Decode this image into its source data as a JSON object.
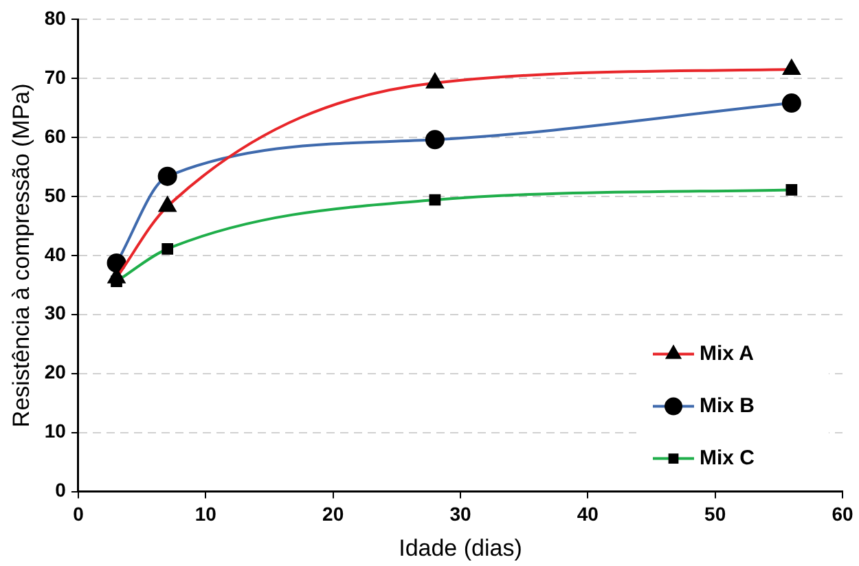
{
  "chart_data": {
    "type": "line",
    "xlabel": "Idade (dias)",
    "ylabel": "Resistência à compressão (MPa)",
    "x": [
      3,
      7,
      28,
      56
    ],
    "series": [
      {
        "name": "Mix A",
        "color": "#e8262a",
        "marker": "triangle",
        "values": [
          36.2,
          48.3,
          69.2,
          71.5
        ]
      },
      {
        "name": "Mix B",
        "color": "#3f6aad",
        "marker": "circle",
        "values": [
          38.7,
          53.4,
          59.6,
          65.8
        ]
      },
      {
        "name": "Mix C",
        "color": "#1fae4a",
        "marker": "square",
        "values": [
          35.6,
          41.1,
          49.4,
          51.1
        ]
      }
    ],
    "xlim": [
      0,
      60
    ],
    "xticks": [
      0,
      10,
      20,
      30,
      40,
      50,
      60
    ],
    "ylim": [
      0,
      80
    ],
    "yticks": [
      0,
      10,
      20,
      30,
      40,
      50,
      60,
      70,
      80
    ],
    "grid": "y",
    "legend": "bottom right",
    "line_style": "solid"
  }
}
